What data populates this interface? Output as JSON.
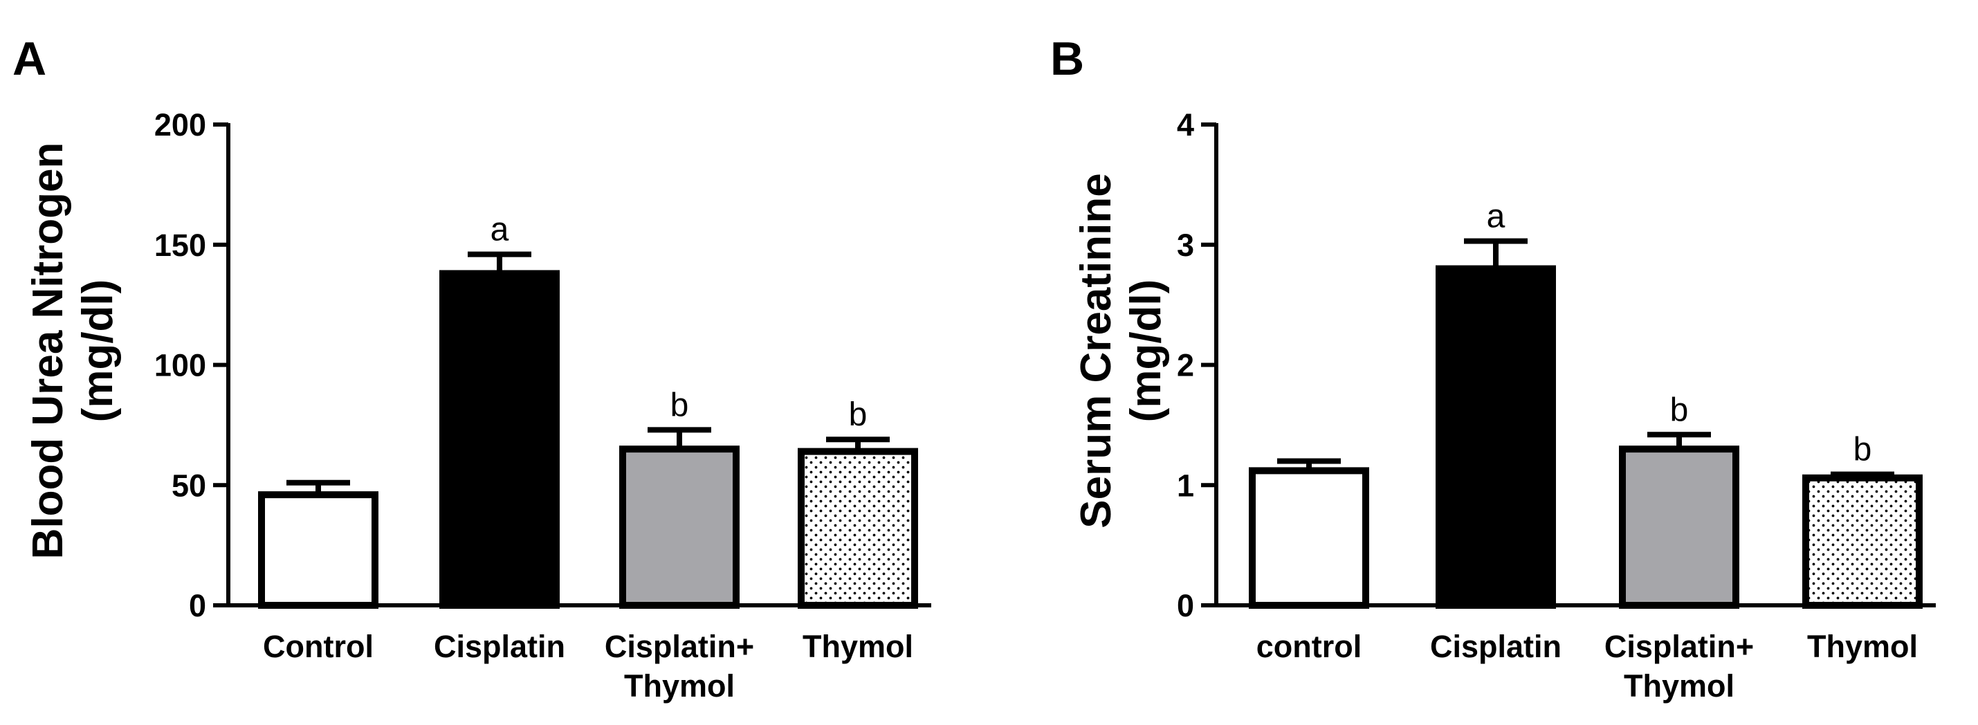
{
  "chart_data": [
    {
      "panel": "A",
      "type": "bar",
      "ylabel_lines": [
        "Blood Urea Nitrogen",
        "(mg/dl)"
      ],
      "ylim": [
        0,
        200
      ],
      "yticks": [
        "0",
        "50",
        "100",
        "150",
        "200"
      ],
      "ytick_values": [
        0,
        50,
        100,
        150,
        200
      ],
      "categories": [
        [
          "Control"
        ],
        [
          "Cisplatin"
        ],
        [
          "Cisplatin+",
          "Thymol"
        ],
        [
          "Thymol"
        ]
      ],
      "values": [
        46,
        138,
        65,
        64
      ],
      "errors": [
        5,
        8,
        8,
        5
      ],
      "significance": [
        "",
        "a",
        "b",
        "b"
      ],
      "fills": [
        "white",
        "black",
        "gray",
        "dots"
      ]
    },
    {
      "panel": "B",
      "type": "bar",
      "ylabel_lines": [
        "Serum Creatinine",
        "(mg/dl)"
      ],
      "ylim": [
        0,
        4
      ],
      "yticks": [
        "0",
        "1",
        "2",
        "3",
        "4"
      ],
      "ytick_values": [
        0,
        1,
        2,
        3,
        4
      ],
      "categories": [
        [
          "control"
        ],
        [
          "Cisplatin"
        ],
        [
          "Cisplatin+",
          "Thymol"
        ],
        [
          "Thymol"
        ]
      ],
      "values": [
        1.12,
        2.8,
        1.3,
        1.06
      ],
      "errors": [
        0.08,
        0.23,
        0.12,
        0.03
      ],
      "significance": [
        "",
        "a",
        "b",
        "b"
      ],
      "fills": [
        "white",
        "black",
        "gray",
        "dots"
      ]
    }
  ],
  "colors": {
    "black": "#000000",
    "gray": "#a6a6aa",
    "white": "#ffffff",
    "dots": "#000000"
  }
}
